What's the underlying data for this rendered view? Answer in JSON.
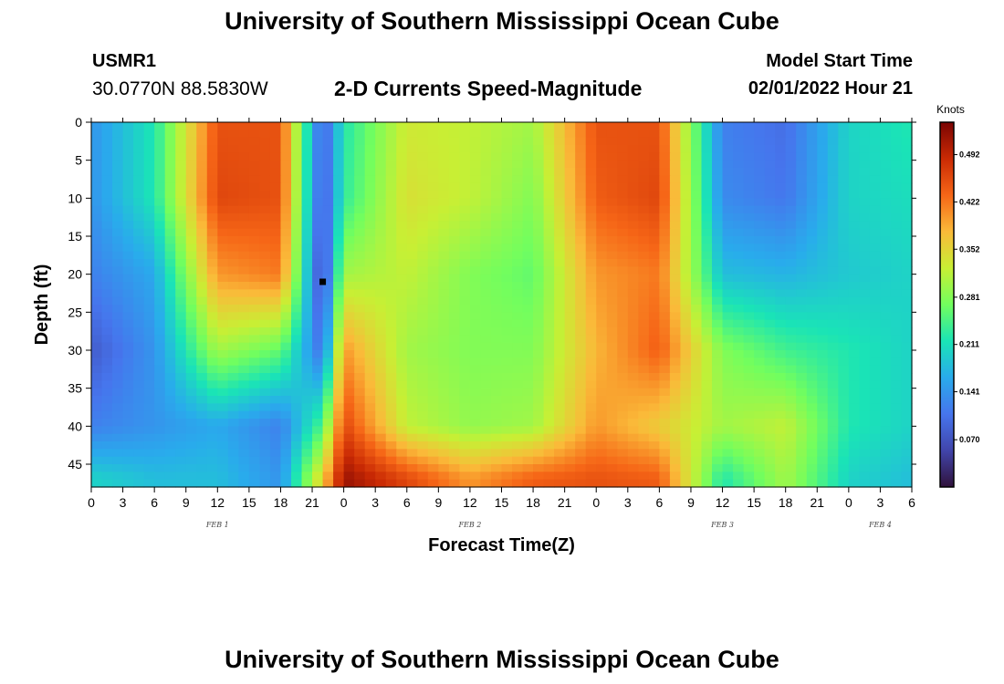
{
  "header": {
    "title": "University of Southern Mississippi Ocean Cube",
    "station_id": "USMR1",
    "coordinates": "30.0770N  88.5830W",
    "subtitle": "2-D Currents Speed-Magnitude",
    "model_start_label": "Model Start Time",
    "model_start_value": "02/01/2022 Hour 21"
  },
  "footer": {
    "title": "University of Southern Mississippi Ocean Cube"
  },
  "chart_data": {
    "type": "heatmap",
    "title": "2-D Currents Speed-Magnitude",
    "xlabel": "Forecast Time(Z)",
    "ylabel": "Depth (ft)",
    "x_start_hour": 0,
    "x_end_hour": 78,
    "y_range": [
      0,
      48
    ],
    "x_tick_hours": [
      0,
      3,
      6,
      9,
      12,
      15,
      18,
      21,
      24,
      27,
      30,
      33,
      36,
      39,
      42,
      45,
      48,
      51,
      54,
      57,
      60,
      63,
      66,
      69,
      72,
      75,
      78
    ],
    "x_tick_labels": [
      "0",
      "3",
      "6",
      "9",
      "12",
      "15",
      "18",
      "21",
      "0",
      "3",
      "6",
      "9",
      "12",
      "15",
      "18",
      "21",
      "0",
      "3",
      "6",
      "9",
      "12",
      "15",
      "18",
      "21",
      "0",
      "3",
      "6"
    ],
    "day_labels": [
      {
        "hour": 12,
        "label": "FEB 1"
      },
      {
        "hour": 36,
        "label": "FEB 2"
      },
      {
        "hour": 60,
        "label": "FEB 3"
      },
      {
        "hour": 75,
        "label": "FEB 4"
      }
    ],
    "y_ticks": [
      0,
      5,
      10,
      15,
      20,
      25,
      30,
      35,
      40,
      45
    ],
    "y_tick_labels": [
      "0",
      "5",
      "10",
      "15",
      "20",
      "25",
      "30",
      "35",
      "40",
      "45"
    ],
    "colorbar": {
      "unit": "Knots",
      "min": 0.0,
      "max": 0.54,
      "ticks": [
        0.07,
        0.141,
        0.211,
        0.281,
        0.352,
        0.422,
        0.492
      ],
      "tick_labels": [
        "0.070",
        "0.141",
        "0.211",
        "0.281",
        "0.352",
        "0.422",
        "0.492"
      ]
    },
    "grid_step_hours": 1,
    "grid_step_depth_ft": 1,
    "sample_depths_ft": [
      0,
      10,
      20,
      30,
      40,
      47
    ],
    "sample_hours": [
      0,
      6,
      12,
      18,
      22,
      24,
      30,
      36,
      42,
      48,
      54,
      60,
      66,
      72,
      78
    ],
    "speed_knots": [
      [
        0.14,
        0.22,
        0.45,
        0.45,
        0.08,
        0.22,
        0.33,
        0.32,
        0.3,
        0.45,
        0.45,
        0.12,
        0.1,
        0.2,
        0.22
      ],
      [
        0.14,
        0.22,
        0.46,
        0.45,
        0.07,
        0.23,
        0.34,
        0.32,
        0.28,
        0.44,
        0.46,
        0.13,
        0.11,
        0.2,
        0.21
      ],
      [
        0.12,
        0.16,
        0.4,
        0.42,
        0.05,
        0.3,
        0.32,
        0.28,
        0.26,
        0.4,
        0.42,
        0.18,
        0.17,
        0.19,
        0.2
      ],
      [
        0.08,
        0.14,
        0.3,
        0.26,
        0.1,
        0.4,
        0.3,
        0.28,
        0.28,
        0.38,
        0.44,
        0.28,
        0.24,
        0.22,
        0.2
      ],
      [
        0.12,
        0.14,
        0.16,
        0.12,
        0.25,
        0.46,
        0.32,
        0.29,
        0.3,
        0.4,
        0.36,
        0.3,
        0.32,
        0.22,
        0.2
      ],
      [
        0.2,
        0.18,
        0.18,
        0.14,
        0.36,
        0.52,
        0.46,
        0.4,
        0.44,
        0.45,
        0.44,
        0.22,
        0.3,
        0.2,
        0.18
      ]
    ],
    "marker": {
      "hour": 22,
      "depth_ft": 21,
      "shape": "square"
    }
  }
}
